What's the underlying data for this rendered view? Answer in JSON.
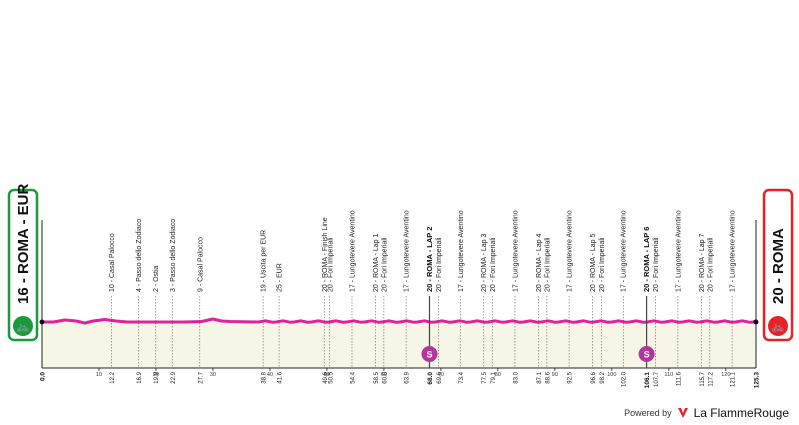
{
  "start": {
    "label": "16 - ROMA - EUR",
    "km": "0.0",
    "color": "#1a9a3a"
  },
  "finish": {
    "label": "20 - ROMA",
    "km": "125.3",
    "color": "#e8202a"
  },
  "profile_color": "#e0239b",
  "fill_color": "#f5f6e6",
  "axis_ticks": [
    "10",
    "20",
    "30",
    "40",
    "50",
    "60",
    "70",
    "80",
    "90",
    "100",
    "110",
    "120"
  ],
  "waypoints": [
    {
      "label": "10 - Casal Palocco",
      "km": "12.2"
    },
    {
      "label": "4 - Passo dello Zodiaco",
      "km": "16.9"
    },
    {
      "label": "2 - Ostia",
      "km": "19.9"
    },
    {
      "label": "3 - Passo dello Zodiaco",
      "km": "22.9"
    },
    {
      "label": "9 - Casal Palocco",
      "km": "27.7"
    },
    {
      "label": "19 - Uscita per EUR",
      "km": "38.8"
    },
    {
      "label": "25 - EUR",
      "km": "41.6"
    },
    {
      "label": "20 - ROMA - Finish Line",
      "km": "49.6"
    },
    {
      "label": "20 - Fori Imperiali",
      "km": "50.5"
    },
    {
      "label": "17 - Lungotevere Aventino",
      "km": "54.4"
    },
    {
      "label": "20 - ROMA - Lap 1",
      "km": "58.5"
    },
    {
      "label": "20 - Fori Imperiali",
      "km": "60.0"
    },
    {
      "label": "17 - Lungotevere Aventino",
      "km": "63.9"
    },
    {
      "label": "20 - ROMA - LAP 2",
      "km": "68.0",
      "bold": true
    },
    {
      "label": "20 - Fori Imperiali",
      "km": "69.6"
    },
    {
      "label": "17 - Lungotevere Aventino",
      "km": "73.4"
    },
    {
      "label": "20 - ROMA - Lap 3",
      "km": "77.5"
    },
    {
      "label": "20 - Fori Imperiali",
      "km": "79.1"
    },
    {
      "label": "17 - Lungotevere Aventino",
      "km": "83.0"
    },
    {
      "label": "20 - ROMA - Lap 4",
      "km": "87.1"
    },
    {
      "label": "20 - Fori Imperiali",
      "km": "88.6"
    },
    {
      "label": "17 - Lungotevere Aventino",
      "km": "92.5"
    },
    {
      "label": "20 - ROMA - Lap 5",
      "km": "96.6"
    },
    {
      "label": "20 - Fori Imperiali",
      "km": "98.2"
    },
    {
      "label": "17 - Lungotevere Aventino",
      "km": "102.0"
    },
    {
      "label": "20 - ROMA - LAP 6",
      "km": "106.1",
      "bold": true
    },
    {
      "label": "20 - Fori Imperiali",
      "km": "107.7"
    },
    {
      "label": "17 - Lungotevere Aventino",
      "km": "111.6"
    },
    {
      "label": "20 - ROMA - Lap 7",
      "km": "115.7"
    },
    {
      "label": "20 - Fori Imperiali",
      "km": "117.2"
    },
    {
      "label": "17 - Lungotevere Aventino",
      "km": "121.1"
    }
  ],
  "sprints": [
    {
      "km": 68.0,
      "icon": "S"
    },
    {
      "km": 106.1,
      "icon": "S"
    }
  ],
  "footer": {
    "powered_by": "Powered by",
    "brand": "La FlammeRouge"
  }
}
